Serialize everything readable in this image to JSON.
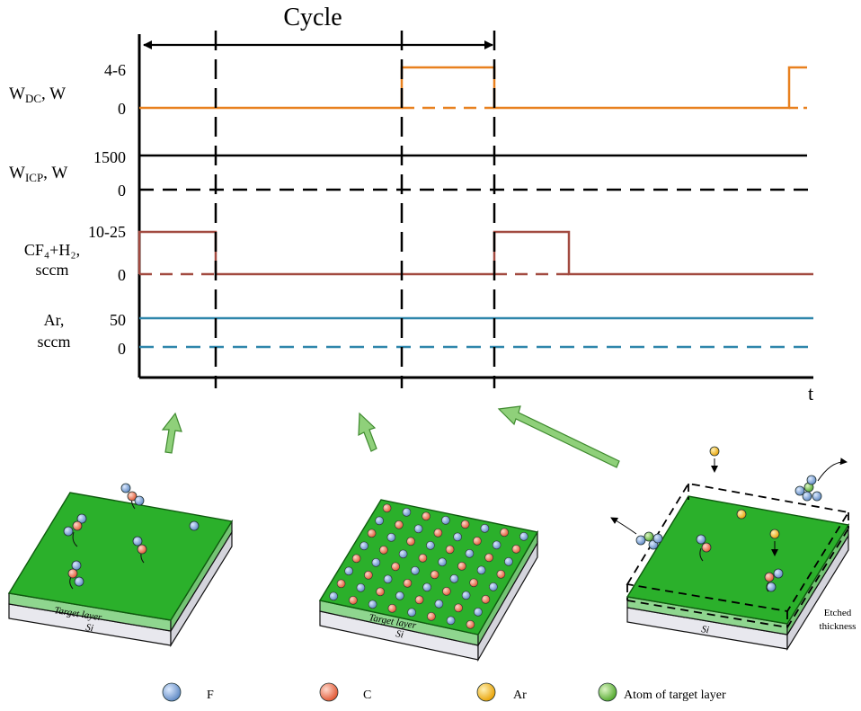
{
  "title": "Cycle",
  "time_axis_label": "t",
  "colors": {
    "dc": "#e8801e",
    "icp": "#000000",
    "gas": "#a24a40",
    "ar": "#2e86ab",
    "arrow": "#8fd07a",
    "arrow_edge": "#3f8a2f",
    "surface": "#2bb02b",
    "surface_edge": "#0f5a0f",
    "target_side": "#8fd68f",
    "si_side": "#e8e8ee",
    "F": "#7ea6d6",
    "C": "#f07c5c",
    "Ar": "#f4b820",
    "T": "#7cc24e"
  },
  "traces": [
    {
      "id": "dc",
      "label_main": "W",
      "label_sub": "DC",
      "label_rest": ", W",
      "high_label": "4-6",
      "low_label": "0"
    },
    {
      "id": "icp",
      "label_main": "W",
      "label_sub": "ICP",
      "label_rest": ", W",
      "high_label": "1500",
      "low_label": "0"
    },
    {
      "id": "gas",
      "label_line1": "CF₄+H₂,",
      "label_line2": "sccm",
      "high_label": "10-25",
      "low_label": "0"
    },
    {
      "id": "ar",
      "label_line1": "Ar,",
      "label_line2": "sccm",
      "high_label": "50",
      "low_label": "0"
    }
  ],
  "panels": [
    {
      "id": "adsorption",
      "target_label": "Target layer",
      "si_label": "Si"
    },
    {
      "id": "saturation",
      "target_label": "Target layer",
      "si_label": "Si"
    },
    {
      "id": "etching",
      "si_label": "Si",
      "etched_label_1": "Etched",
      "etched_label_2": "thickness"
    }
  ],
  "legend": [
    {
      "key": "F",
      "label": "F"
    },
    {
      "key": "C",
      "label": "C"
    },
    {
      "key": "Ar",
      "label": "Ar"
    },
    {
      "key": "T",
      "label": "Atom of target layer"
    }
  ]
}
